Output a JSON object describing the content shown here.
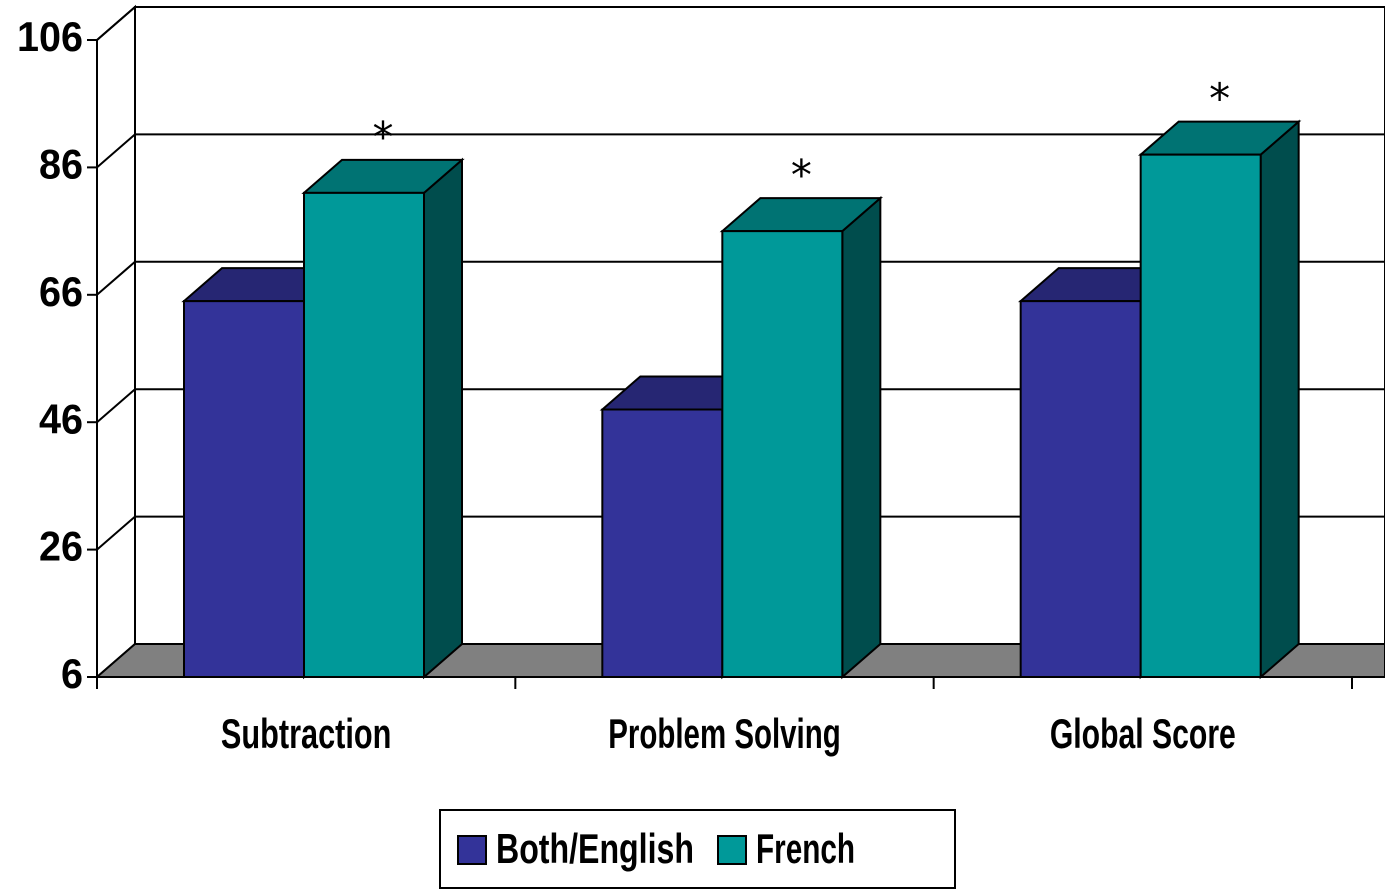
{
  "chart_data": {
    "type": "bar3d",
    "categories": [
      "Subtraction",
      "Problem Solving",
      "Global Score"
    ],
    "series": [
      {
        "name": "Both/English",
        "color": "#333399",
        "values": [
          65,
          48,
          65
        ]
      },
      {
        "name": "French",
        "color": "#009999",
        "values": [
          82,
          76,
          88
        ]
      }
    ],
    "annotations": [
      "*",
      "*",
      "*"
    ],
    "ylim": [
      6,
      106
    ],
    "yticks": [
      6,
      26,
      46,
      66,
      86,
      106
    ],
    "grid": true,
    "legend": "bottom"
  }
}
